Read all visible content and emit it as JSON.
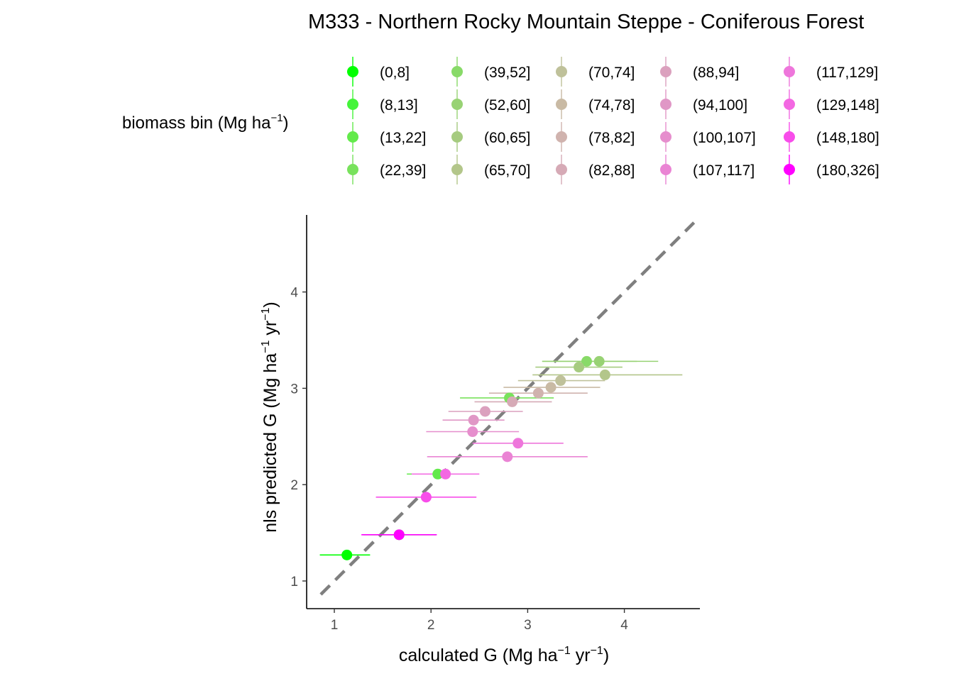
{
  "chart_data": {
    "type": "scatter",
    "title": "M333 - Northern Rocky Mountain Steppe - Coniferous Forest",
    "xlabel": {
      "main": "calculated G (Mg ha",
      "sup1": "−1",
      "mid": " yr",
      "sup2": "−1",
      "end": ")"
    },
    "ylabel": {
      "main": "nls predicted G (Mg ha",
      "sup1": "−1",
      "mid": " yr",
      "sup2": "−1",
      "end": ")"
    },
    "legend": {
      "title_main": "biomass bin (Mg ha",
      "title_sup": "−1",
      "title_end": ")",
      "placement": "top"
    },
    "xlim": [
      0.75,
      4.8
    ],
    "ylim": [
      0.7,
      4.75
    ],
    "xticks": [
      1,
      2,
      3,
      4
    ],
    "yticks": [
      1,
      2,
      3,
      4
    ],
    "reference_line": {
      "slope": 1,
      "intercept": 0,
      "style": "dashed",
      "color": "#7f7f7f"
    },
    "grid": false,
    "series": [
      {
        "name": "(0,8]",
        "color": "#00FF00",
        "x": 1.13,
        "y": 1.27,
        "xmin": 0.85,
        "xmax": 1.37
      },
      {
        "name": "(8,13]",
        "color": "#44F43A",
        "x": 1.67,
        "y": 1.48,
        "xmin": 1.3,
        "xmax": 2.05
      },
      {
        "name": "(13,22]",
        "color": "#63EA4B",
        "x": 2.07,
        "y": 2.11,
        "xmin": 1.75,
        "xmax": 2.4
      },
      {
        "name": "(22,39]",
        "color": "#78E25C",
        "x": 2.81,
        "y": 2.9,
        "xmin": 2.3,
        "xmax": 3.27
      },
      {
        "name": "(39,52]",
        "color": "#88DA68",
        "x": 3.61,
        "y": 3.28,
        "xmin": 3.15,
        "xmax": 4.13
      },
      {
        "name": "(52,60]",
        "color": "#98D274",
        "x": 3.74,
        "y": 3.28,
        "xmin": 3.15,
        "xmax": 4.35
      },
      {
        "name": "(60,65]",
        "color": "#A6CB80",
        "x": 3.53,
        "y": 3.22,
        "xmin": 3.08,
        "xmax": 3.98
      },
      {
        "name": "(65,70]",
        "color": "#B3C68A",
        "x": 3.8,
        "y": 3.14,
        "xmin": 3.05,
        "xmax": 4.6
      },
      {
        "name": "(70,74]",
        "color": "#BFC19A",
        "x": 3.34,
        "y": 3.08,
        "xmin": 2.9,
        "xmax": 3.8
      },
      {
        "name": "(74,78]",
        "color": "#C9BAA4",
        "x": 3.24,
        "y": 3.01,
        "xmin": 2.75,
        "xmax": 3.75
      },
      {
        "name": "(78,82]",
        "color": "#D0B3AE",
        "x": 3.11,
        "y": 2.95,
        "xmin": 2.6,
        "xmax": 3.62
      },
      {
        "name": "(82,88]",
        "color": "#D6AAB6",
        "x": 2.84,
        "y": 2.86,
        "xmin": 2.45,
        "xmax": 3.25
      },
      {
        "name": "(88,94]",
        "color": "#DBA1BE",
        "x": 2.56,
        "y": 2.76,
        "xmin": 2.18,
        "xmax": 2.95
      },
      {
        "name": "(94,100]",
        "color": "#E097C6",
        "x": 2.44,
        "y": 2.67,
        "xmin": 2.12,
        "xmax": 2.76
      },
      {
        "name": "(100,107]",
        "color": "#E68ECD",
        "x": 2.43,
        "y": 2.55,
        "xmin": 1.95,
        "xmax": 2.91
      },
      {
        "name": "(107,117]",
        "color": "#EA84D4",
        "x": 2.79,
        "y": 2.29,
        "xmin": 1.96,
        "xmax": 3.62
      },
      {
        "name": "(117,129]",
        "color": "#EE76DB",
        "x": 2.9,
        "y": 2.43,
        "xmin": 2.43,
        "xmax": 3.37
      },
      {
        "name": "(129,148]",
        "color": "#F368E2",
        "x": 2.15,
        "y": 2.11,
        "xmin": 1.8,
        "xmax": 2.5
      },
      {
        "name": "(148,180]",
        "color": "#F84DEA",
        "x": 1.95,
        "y": 1.87,
        "xmin": 1.43,
        "xmax": 2.47
      },
      {
        "name": "(180,326]",
        "color": "#FF00FF",
        "x": 1.67,
        "y": 1.48,
        "xmin": 1.28,
        "xmax": 2.06
      }
    ]
  }
}
